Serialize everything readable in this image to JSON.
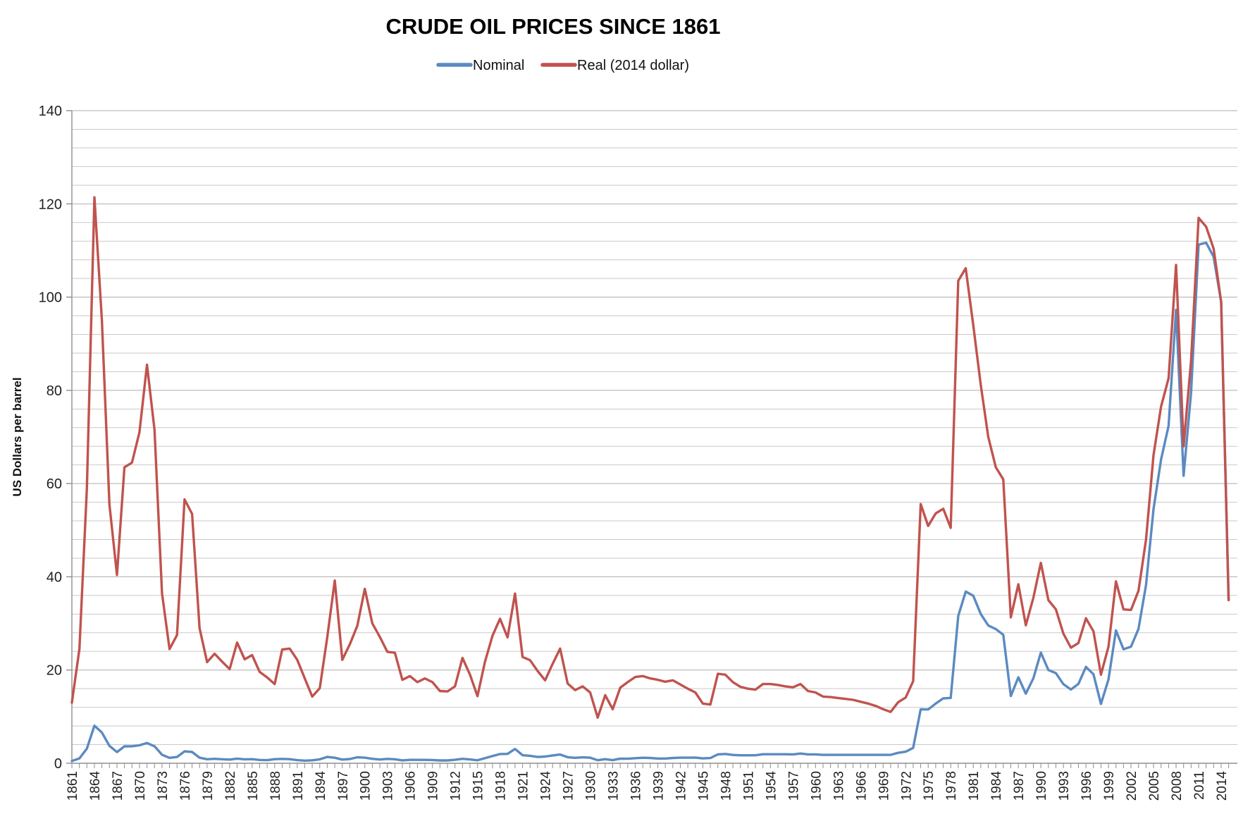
{
  "title": "CRUDE OIL PRICES SINCE 1861",
  "legend": {
    "position": "top-center",
    "nominal_label": "Nominal",
    "real_label": "Real (2014 dollar)"
  },
  "colors": {
    "nominal_line": "#5b8ac1",
    "real_line": "#c0534e",
    "grid_minor": "#c9c9c9",
    "grid_major": "#adadad",
    "axis": "#8f8f8f",
    "text": "#1f1f1f",
    "background": "#ffffff"
  },
  "chart_data": {
    "type": "line",
    "title": "CRUDE OIL PRICES SINCE 1861",
    "xlabel": "",
    "ylabel": "US Dollars per barrel",
    "ylim": [
      0,
      140
    ],
    "y_major_step": 20,
    "y_minor_step": 4,
    "y_tick_labels": [
      0,
      20,
      40,
      60,
      80,
      100,
      120,
      140
    ],
    "x_label_step": 3,
    "x_tick_labels": [
      1861,
      1864,
      1867,
      1870,
      1873,
      1876,
      1879,
      1882,
      1885,
      1888,
      1891,
      1894,
      1897,
      1900,
      1903,
      1906,
      1909,
      1912,
      1915,
      1918,
      1921,
      1924,
      1927,
      1930,
      1933,
      1936,
      1939,
      1942,
      1945,
      1948,
      1951,
      1954,
      1957,
      1960,
      1963,
      1966,
      1969,
      1972,
      1975,
      1978,
      1981,
      1984,
      1987,
      1990,
      1993,
      1996,
      1999,
      2002,
      2005,
      2008,
      2011,
      2014
    ],
    "grid": "horizontal",
    "legend_position": "top-center",
    "x": [
      1861,
      1862,
      1863,
      1864,
      1865,
      1866,
      1867,
      1868,
      1869,
      1870,
      1871,
      1872,
      1873,
      1874,
      1875,
      1876,
      1877,
      1878,
      1879,
      1880,
      1881,
      1882,
      1883,
      1884,
      1885,
      1886,
      1887,
      1888,
      1889,
      1890,
      1891,
      1892,
      1893,
      1894,
      1895,
      1896,
      1897,
      1898,
      1899,
      1900,
      1901,
      1902,
      1903,
      1904,
      1905,
      1906,
      1907,
      1908,
      1909,
      1910,
      1911,
      1912,
      1913,
      1914,
      1915,
      1916,
      1917,
      1918,
      1919,
      1920,
      1921,
      1922,
      1923,
      1924,
      1925,
      1926,
      1927,
      1928,
      1929,
      1930,
      1931,
      1932,
      1933,
      1934,
      1935,
      1936,
      1937,
      1938,
      1939,
      1940,
      1941,
      1942,
      1943,
      1944,
      1945,
      1946,
      1947,
      1948,
      1949,
      1950,
      1951,
      1952,
      1953,
      1954,
      1955,
      1956,
      1957,
      1958,
      1959,
      1960,
      1961,
      1962,
      1963,
      1964,
      1965,
      1966,
      1967,
      1968,
      1969,
      1970,
      1971,
      1972,
      1973,
      1974,
      1975,
      1976,
      1977,
      1978,
      1979,
      1980,
      1981,
      1982,
      1983,
      1984,
      1985,
      1986,
      1987,
      1988,
      1989,
      1990,
      1991,
      1992,
      1993,
      1994,
      1995,
      1996,
      1997,
      1998,
      1999,
      2000,
      2001,
      2002,
      2003,
      2004,
      2005,
      2006,
      2007,
      2008,
      2009,
      2010,
      2011,
      2012,
      2013,
      2014,
      2015
    ],
    "series": [
      {
        "name": "Nominal",
        "color": "#5b8ac1",
        "values": [
          0.49,
          1.05,
          3.15,
          8.06,
          6.59,
          3.74,
          2.41,
          3.63,
          3.64,
          3.86,
          4.34,
          3.64,
          1.83,
          1.17,
          1.35,
          2.56,
          2.42,
          1.19,
          0.86,
          0.95,
          0.86,
          0.78,
          1.0,
          0.84,
          0.88,
          0.71,
          0.67,
          0.88,
          0.94,
          0.87,
          0.67,
          0.56,
          0.64,
          0.84,
          1.36,
          1.18,
          0.79,
          0.91,
          1.29,
          1.19,
          0.96,
          0.8,
          0.94,
          0.86,
          0.62,
          0.73,
          0.72,
          0.72,
          0.7,
          0.61,
          0.61,
          0.74,
          0.95,
          0.81,
          0.64,
          1.1,
          1.56,
          1.98,
          2.01,
          3.07,
          1.73,
          1.61,
          1.34,
          1.43,
          1.68,
          1.88,
          1.3,
          1.17,
          1.27,
          1.19,
          0.65,
          0.87,
          0.67,
          1.0,
          0.97,
          1.09,
          1.18,
          1.13,
          1.02,
          1.02,
          1.14,
          1.19,
          1.2,
          1.21,
          1.05,
          1.12,
          1.9,
          1.99,
          1.78,
          1.71,
          1.71,
          1.71,
          1.93,
          1.93,
          1.93,
          1.93,
          1.9,
          2.08,
          1.9,
          1.9,
          1.8,
          1.8,
          1.8,
          1.8,
          1.8,
          1.8,
          1.8,
          1.8,
          1.8,
          1.8,
          2.24,
          2.48,
          3.29,
          11.58,
          11.53,
          12.8,
          13.92,
          14.02,
          31.61,
          36.83,
          35.93,
          32.0,
          29.55,
          28.78,
          27.56,
          14.43,
          18.44,
          14.92,
          18.23,
          23.73,
          20.0,
          19.32,
          16.97,
          15.82,
          17.02,
          20.67,
          19.09,
          12.72,
          17.97,
          28.5,
          24.44,
          25.02,
          28.83,
          38.27,
          54.52,
          65.14,
          72.39,
          97.26,
          61.67,
          79.5,
          111.26,
          111.67,
          108.66,
          98.95,
          35.0
        ]
      },
      {
        "name": "Real (2014 dollar)",
        "color": "#c0534e",
        "values": [
          13.0,
          24.5,
          59.0,
          121.4,
          95.0,
          55.5,
          40.4,
          63.5,
          64.5,
          71.0,
          85.5,
          71.5,
          36.5,
          24.5,
          27.5,
          56.6,
          53.5,
          29.0,
          21.7,
          23.5,
          21.8,
          20.2,
          25.9,
          22.3,
          23.2,
          19.6,
          18.4,
          17.0,
          24.4,
          24.6,
          22.2,
          18.2,
          14.3,
          16.1,
          27.0,
          39.2,
          22.2,
          25.5,
          29.5,
          37.4,
          30.0,
          27.1,
          23.9,
          23.7,
          17.9,
          18.7,
          17.4,
          18.2,
          17.4,
          15.5,
          15.4,
          16.5,
          22.6,
          19.0,
          14.4,
          21.8,
          27.4,
          31.0,
          27.0,
          36.4,
          22.8,
          22.1,
          19.8,
          17.8,
          21.3,
          24.6,
          17.1,
          15.7,
          16.5,
          15.2,
          9.8,
          14.6,
          11.6,
          16.2,
          17.4,
          18.5,
          18.7,
          18.2,
          17.9,
          17.5,
          17.8,
          16.9,
          16.0,
          15.2,
          12.8,
          12.6,
          19.2,
          19.0,
          17.4,
          16.4,
          16.0,
          15.8,
          17.0,
          17.0,
          16.8,
          16.5,
          16.3,
          17.0,
          15.5,
          15.2,
          14.3,
          14.2,
          14.0,
          13.8,
          13.6,
          13.2,
          12.8,
          12.3,
          11.6,
          11.0,
          13.1,
          14.1,
          17.6,
          55.6,
          50.9,
          53.6,
          54.6,
          50.5,
          103.5,
          106.2,
          94.0,
          81.1,
          70.0,
          63.5,
          60.9,
          31.3,
          38.4,
          29.6,
          35.5,
          43.0,
          35.0,
          33.0,
          27.8,
          24.8,
          25.8,
          31.1,
          28.3,
          19.0,
          25.0,
          39.0,
          33.0,
          32.9,
          37.0,
          48.0,
          66.1,
          76.5,
          82.6,
          106.9,
          68.0,
          86.3,
          117.0,
          115.1,
          110.4,
          99.0,
          35.0
        ]
      }
    ]
  }
}
